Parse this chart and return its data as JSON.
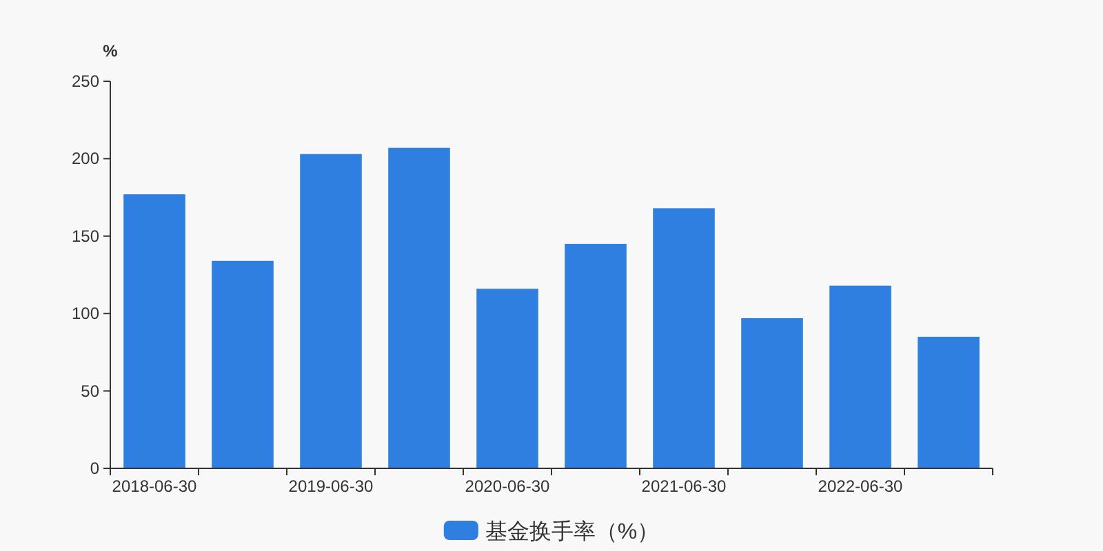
{
  "chart_data": {
    "type": "bar",
    "ylabel": "%",
    "categories": [
      "2018-06-30",
      null,
      "2019-06-30",
      null,
      "2020-06-30",
      null,
      "2021-06-30",
      null,
      "2022-06-30",
      null
    ],
    "series": [
      {
        "name": "基金换手率（%）",
        "color": "#2e7fe0",
        "values": [
          177,
          134,
          203,
          207,
          116,
          145,
          168,
          97,
          118,
          85
        ]
      }
    ],
    "ylim": [
      0,
      250
    ],
    "yticks": [
      0,
      50,
      100,
      150,
      200,
      250
    ],
    "legend": "bottom",
    "grid": false
  }
}
